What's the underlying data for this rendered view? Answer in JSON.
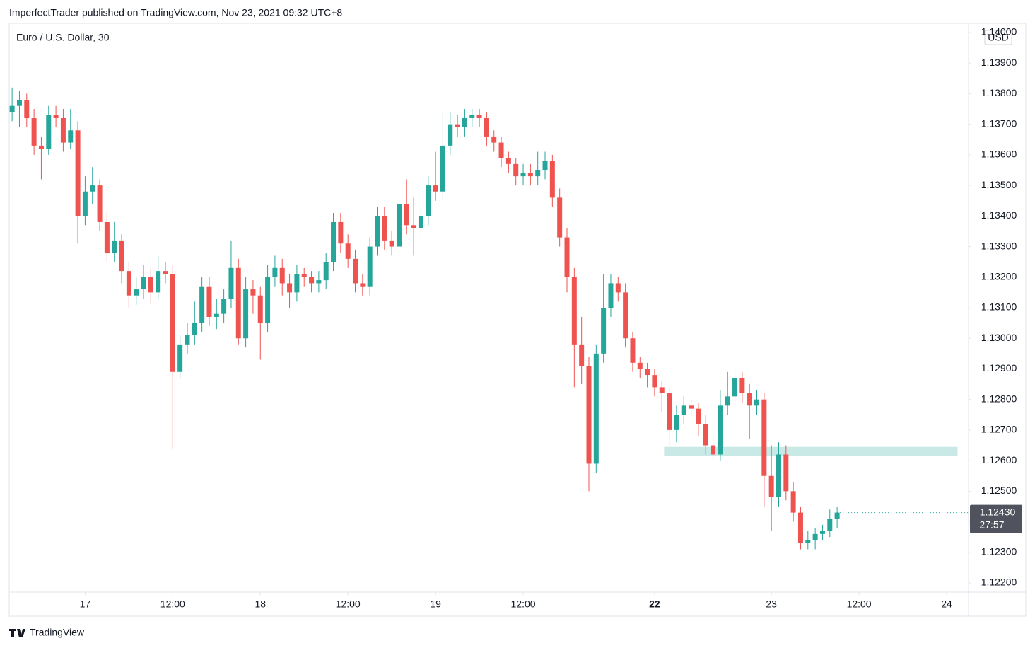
{
  "header": {
    "published": "ImperfectTrader published on TradingView.com, Nov 23, 2021 09:32 UTC+8",
    "brand": "TradingView"
  },
  "chart_data": {
    "type": "candlestick",
    "title": "Euro / U.S. Dollar, 30",
    "currency": "USD",
    "up_color": "#26a69a",
    "down_color": "#ef5350",
    "ylim": [
      1.1217,
      1.1403
    ],
    "yticks": [
      {
        "value": 1.122,
        "label": "1.12200"
      },
      {
        "value": 1.123,
        "label": "1.12300"
      },
      {
        "value": 1.124,
        "label": "1.12400"
      },
      {
        "value": 1.125,
        "label": "1.12500"
      },
      {
        "value": 1.126,
        "label": "1.12600"
      },
      {
        "value": 1.127,
        "label": "1.12700"
      },
      {
        "value": 1.128,
        "label": "1.12800"
      },
      {
        "value": 1.129,
        "label": "1.12900"
      },
      {
        "value": 1.13,
        "label": "1.13000"
      },
      {
        "value": 1.131,
        "label": "1.13100"
      },
      {
        "value": 1.132,
        "label": "1.13200"
      },
      {
        "value": 1.133,
        "label": "1.13300"
      },
      {
        "value": 1.134,
        "label": "1.13400"
      },
      {
        "value": 1.135,
        "label": "1.13500"
      },
      {
        "value": 1.136,
        "label": "1.13600"
      },
      {
        "value": 1.137,
        "label": "1.13700"
      },
      {
        "value": 1.138,
        "label": "1.13800"
      },
      {
        "value": 1.139,
        "label": "1.13900"
      },
      {
        "value": 1.14,
        "label": "1.14000"
      }
    ],
    "xlim": [
      -0.4,
      131
    ],
    "xticks": [
      {
        "value": 10,
        "label": "17"
      },
      {
        "value": 22,
        "label": "12:00"
      },
      {
        "value": 34,
        "label": "18"
      },
      {
        "value": 46,
        "label": "12:00"
      },
      {
        "value": 58,
        "label": "19"
      },
      {
        "value": 70,
        "label": "12:00"
      },
      {
        "value": 88,
        "label": "22",
        "bold": true
      },
      {
        "value": 104,
        "label": "23"
      },
      {
        "value": 116,
        "label": "12:00"
      },
      {
        "value": 128,
        "label": "24"
      }
    ],
    "last_price": {
      "value": 1.1243,
      "label": "1.12430"
    },
    "countdown": "27:57",
    "zone": {
      "y": [
        1.12615,
        1.12645
      ],
      "x": [
        89.3,
        129.5
      ],
      "color": "#b2dfdb"
    },
    "ohlc": [
      [
        1.1374,
        1.1382,
        1.1371,
        1.1376
      ],
      [
        1.1376,
        1.1381,
        1.1369,
        1.1378
      ],
      [
        1.1378,
        1.138,
        1.1369,
        1.1372
      ],
      [
        1.1372,
        1.1375,
        1.136,
        1.1363
      ],
      [
        1.1363,
        1.1366,
        1.1352,
        1.1362
      ],
      [
        1.1362,
        1.1376,
        1.136,
        1.1373
      ],
      [
        1.1373,
        1.1376,
        1.1369,
        1.1372
      ],
      [
        1.1372,
        1.1375,
        1.1361,
        1.1364
      ],
      [
        1.1364,
        1.1375,
        1.1362,
        1.1368
      ],
      [
        1.1368,
        1.1371,
        1.1331,
        1.134
      ],
      [
        1.134,
        1.1353,
        1.1337,
        1.1348
      ],
      [
        1.1348,
        1.1356,
        1.1344,
        1.135
      ],
      [
        1.135,
        1.1352,
        1.1335,
        1.1338
      ],
      [
        1.1338,
        1.1341,
        1.1325,
        1.1328
      ],
      [
        1.1328,
        1.1338,
        1.1325,
        1.1332
      ],
      [
        1.1332,
        1.1334,
        1.1318,
        1.1322
      ],
      [
        1.1322,
        1.1325,
        1.131,
        1.1314
      ],
      [
        1.1314,
        1.132,
        1.1311,
        1.1316
      ],
      [
        1.1316,
        1.1324,
        1.1313,
        1.132
      ],
      [
        1.132,
        1.1323,
        1.1311,
        1.1315
      ],
      [
        1.1315,
        1.1327,
        1.1313,
        1.1322
      ],
      [
        1.1322,
        1.1325,
        1.1318,
        1.1321
      ],
      [
        1.1321,
        1.1324,
        1.1264,
        1.1289
      ],
      [
        1.1289,
        1.1301,
        1.1287,
        1.1298
      ],
      [
        1.1298,
        1.1305,
        1.1295,
        1.1301
      ],
      [
        1.1301,
        1.1312,
        1.1298,
        1.1305
      ],
      [
        1.1305,
        1.132,
        1.1302,
        1.1317
      ],
      [
        1.1317,
        1.132,
        1.1304,
        1.1307
      ],
      [
        1.1307,
        1.1313,
        1.1303,
        1.1308
      ],
      [
        1.1308,
        1.1316,
        1.1305,
        1.1313
      ],
      [
        1.1313,
        1.1332,
        1.131,
        1.1323
      ],
      [
        1.1323,
        1.1326,
        1.1298,
        1.13
      ],
      [
        1.13,
        1.132,
        1.1297,
        1.1316
      ],
      [
        1.1316,
        1.1319,
        1.1308,
        1.1314
      ],
      [
        1.1314,
        1.1317,
        1.1293,
        1.1305
      ],
      [
        1.1305,
        1.1324,
        1.1302,
        1.132
      ],
      [
        1.132,
        1.1327,
        1.1317,
        1.1323
      ],
      [
        1.1323,
        1.1326,
        1.1314,
        1.1318
      ],
      [
        1.1318,
        1.1321,
        1.131,
        1.1315
      ],
      [
        1.1315,
        1.1324,
        1.1312,
        1.1321
      ],
      [
        1.1321,
        1.1323,
        1.1317,
        1.132
      ],
      [
        1.132,
        1.1322,
        1.1315,
        1.1318
      ],
      [
        1.1318,
        1.1322,
        1.1315,
        1.1319
      ],
      [
        1.1319,
        1.1328,
        1.1316,
        1.1325
      ],
      [
        1.1325,
        1.1341,
        1.1322,
        1.1338
      ],
      [
        1.1338,
        1.1341,
        1.1328,
        1.1331
      ],
      [
        1.1331,
        1.1334,
        1.1323,
        1.1326
      ],
      [
        1.1326,
        1.1329,
        1.1315,
        1.1318
      ],
      [
        1.1318,
        1.1321,
        1.1314,
        1.1317
      ],
      [
        1.1317,
        1.1333,
        1.1314,
        1.133
      ],
      [
        1.133,
        1.1343,
        1.1327,
        1.134
      ],
      [
        1.134,
        1.1343,
        1.1329,
        1.1332
      ],
      [
        1.1332,
        1.1335,
        1.1327,
        1.133
      ],
      [
        1.133,
        1.1347,
        1.1327,
        1.1344
      ],
      [
        1.1344,
        1.1352,
        1.1334,
        1.1337
      ],
      [
        1.1337,
        1.1346,
        1.1327,
        1.1336
      ],
      [
        1.1336,
        1.1343,
        1.1333,
        1.134
      ],
      [
        1.134,
        1.1353,
        1.1337,
        1.135
      ],
      [
        1.135,
        1.1361,
        1.1345,
        1.1348
      ],
      [
        1.1348,
        1.1374,
        1.1345,
        1.1363
      ],
      [
        1.1363,
        1.1374,
        1.136,
        1.137
      ],
      [
        1.137,
        1.1373,
        1.1366,
        1.1369
      ],
      [
        1.1369,
        1.1375,
        1.1366,
        1.1372
      ],
      [
        1.1372,
        1.1375,
        1.1369,
        1.1373
      ],
      [
        1.1373,
        1.1375,
        1.1369,
        1.1372
      ],
      [
        1.1372,
        1.1374,
        1.1363,
        1.1366
      ],
      [
        1.1366,
        1.1368,
        1.1361,
        1.1364
      ],
      [
        1.1364,
        1.1366,
        1.1356,
        1.1359
      ],
      [
        1.1359,
        1.1361,
        1.1354,
        1.1357
      ],
      [
        1.1357,
        1.1359,
        1.135,
        1.1353
      ],
      [
        1.1353,
        1.1357,
        1.135,
        1.1354
      ],
      [
        1.1354,
        1.1357,
        1.135,
        1.1353
      ],
      [
        1.1353,
        1.1361,
        1.135,
        1.1355
      ],
      [
        1.1355,
        1.1361,
        1.1352,
        1.1358
      ],
      [
        1.1358,
        1.136,
        1.1343,
        1.1346
      ],
      [
        1.1346,
        1.1349,
        1.133,
        1.1333
      ],
      [
        1.1333,
        1.1336,
        1.1315,
        1.132
      ],
      [
        1.132,
        1.1323,
        1.1284,
        1.1298
      ],
      [
        1.1298,
        1.1307,
        1.1285,
        1.1291
      ],
      [
        1.1291,
        1.1294,
        1.125,
        1.1259
      ],
      [
        1.1259,
        1.1298,
        1.1256,
        1.1295
      ],
      [
        1.1295,
        1.1321,
        1.1292,
        1.131
      ],
      [
        1.131,
        1.1321,
        1.1307,
        1.1318
      ],
      [
        1.1318,
        1.132,
        1.1312,
        1.1315
      ],
      [
        1.1315,
        1.1318,
        1.1297,
        1.13
      ],
      [
        1.13,
        1.1302,
        1.1289,
        1.1292
      ],
      [
        1.1292,
        1.1294,
        1.1287,
        1.129
      ],
      [
        1.129,
        1.1292,
        1.1284,
        1.1288
      ],
      [
        1.1288,
        1.129,
        1.1281,
        1.1284
      ],
      [
        1.1284,
        1.1286,
        1.1276,
        1.1282
      ],
      [
        1.1282,
        1.1284,
        1.1265,
        1.127
      ],
      [
        1.127,
        1.1278,
        1.1266,
        1.1275
      ],
      [
        1.1275,
        1.1281,
        1.1272,
        1.1278
      ],
      [
        1.1278,
        1.128,
        1.1274,
        1.1277
      ],
      [
        1.1277,
        1.1279,
        1.1268,
        1.1272
      ],
      [
        1.1272,
        1.1275,
        1.1262,
        1.1265
      ],
      [
        1.1265,
        1.1268,
        1.126,
        1.1262
      ],
      [
        1.1262,
        1.1283,
        1.126,
        1.1278
      ],
      [
        1.1278,
        1.1289,
        1.1275,
        1.1281
      ],
      [
        1.1281,
        1.1291,
        1.1278,
        1.1287
      ],
      [
        1.1287,
        1.1289,
        1.1279,
        1.1282
      ],
      [
        1.1282,
        1.1285,
        1.1267,
        1.1278
      ],
      [
        1.1278,
        1.1283,
        1.1275,
        1.128
      ],
      [
        1.128,
        1.1282,
        1.1245,
        1.1255
      ],
      [
        1.1255,
        1.1265,
        1.1237,
        1.1248
      ],
      [
        1.1248,
        1.1266,
        1.1245,
        1.1262
      ],
      [
        1.1262,
        1.1265,
        1.1247,
        1.125
      ],
      [
        1.125,
        1.1253,
        1.124,
        1.1243
      ],
      [
        1.1243,
        1.1245,
        1.1231,
        1.1233
      ],
      [
        1.1233,
        1.1237,
        1.1231,
        1.1234
      ],
      [
        1.1234,
        1.1238,
        1.1231,
        1.1236
      ],
      [
        1.1236,
        1.1239,
        1.1234,
        1.1237
      ],
      [
        1.1237,
        1.1244,
        1.1235,
        1.1241
      ],
      [
        1.1241,
        1.1245,
        1.1238,
        1.1243
      ]
    ]
  }
}
